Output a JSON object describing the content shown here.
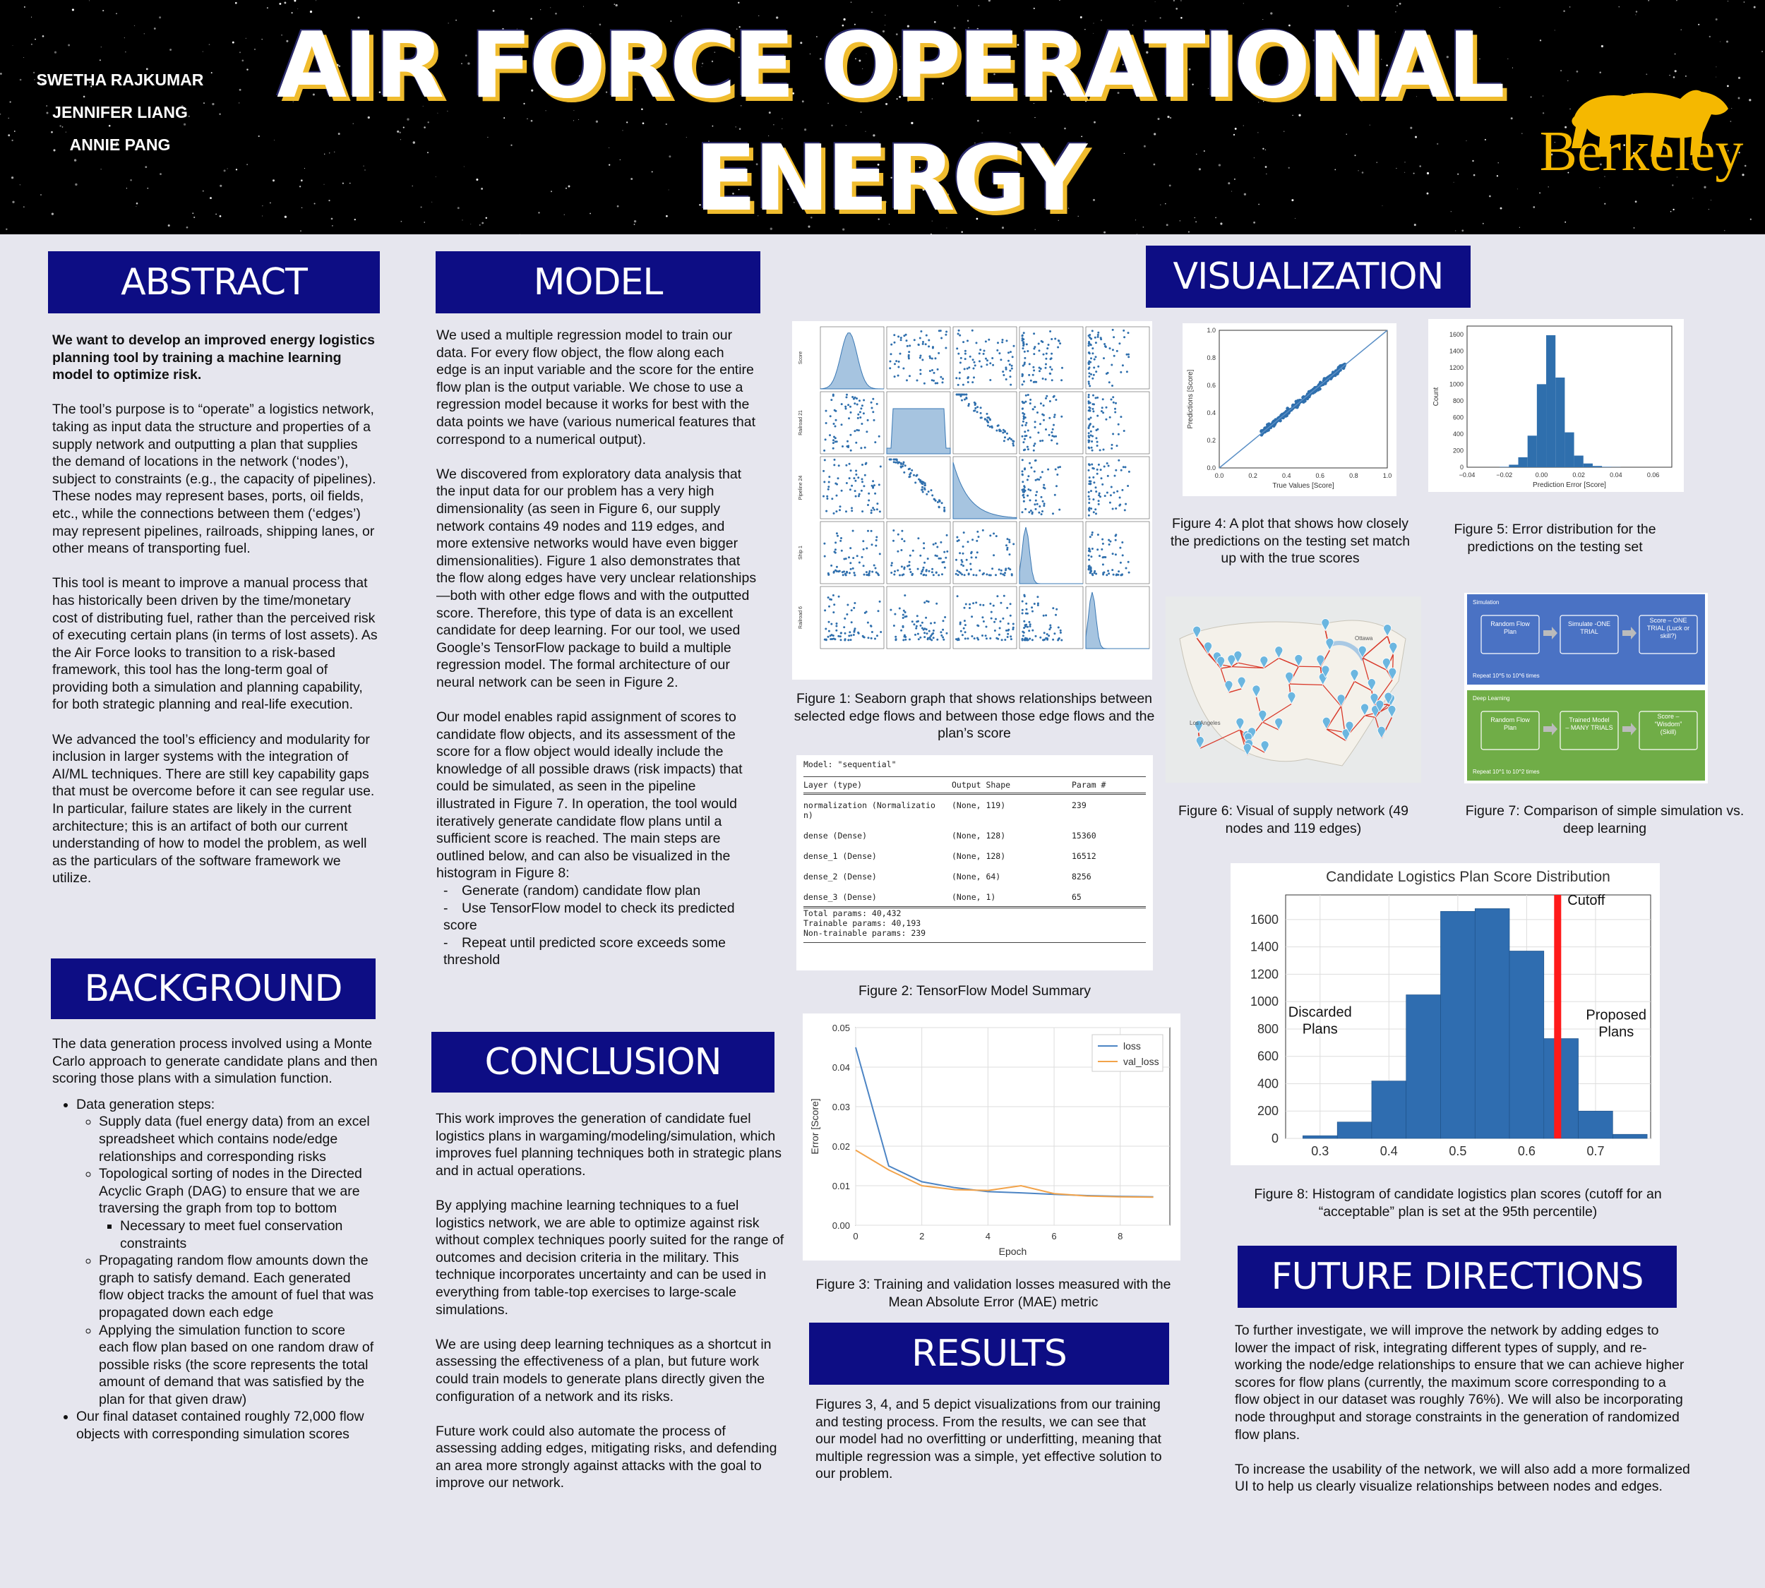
{
  "header": {
    "title": "AIR FORCE OPERATIONAL ENERGY",
    "authors": [
      "SWETHA RAJKUMAR",
      "JENNIFER LIANG",
      "ANNIE PANG"
    ],
    "logo_text": "Berkeley"
  },
  "sections": {
    "abstract": "ABSTRACT",
    "background": "BACKGROUND",
    "model": "MODEL",
    "conclusion": "CONCLUSION",
    "visualization": "VISUALIZATION",
    "results": "RESULTS",
    "future": "FUTURE DIRECTIONS"
  },
  "abstract": {
    "lead": "We want to develop an improved energy logistics planning tool by training a machine learning model to optimize risk.",
    "p1": "The tool’s purpose is to “operate” a logistics network, taking as input data the structure and properties of a supply network and outputting a plan that supplies the demand of locations in the network (‘nodes’), subject to constraints (e.g., the capacity of pipelines). These nodes may represent bases, ports, oil fields, etc., while the connections between them (‘edges’) may represent pipelines, railroads, shipping lanes, or other means of transporting fuel.",
    "p2": "This tool is meant to improve a manual process that has historically been driven by the time/monetary cost of distributing fuel, rather than the perceived risk of executing certain plans (in terms of lost assets). As the Air Force looks to transition to a risk-based framework, this tool has the long-term goal of providing both a simulation and planning capability, for both strategic planning and real-life execution.",
    "p3": "We advanced the tool’s efficiency and modularity for inclusion in larger systems with the integration of AI/ML techniques. There are still key capability gaps that must be overcome before it can see regular use. In particular, failure states are likely in the current architecture; this is an artifact of both our current understanding of how to model the problem, as well as the particulars of the software framework we utilize."
  },
  "background": {
    "intro": "The data generation process involved using a Monte Carlo approach to generate candidate plans and then scoring those plans with a simulation function.",
    "steps_label": "Data generation steps:",
    "s1": "Supply data (fuel energy data) from an excel spreadsheet which contains node/edge relationships and corresponding risks",
    "s2": "Topological sorting of nodes in the Directed Acyclic Graph (DAG) to ensure that we are traversing the graph from top to bottom",
    "s2a": "Necessary to meet fuel conservation constraints",
    "s3": "Propagating random flow amounts down the graph to satisfy demand. Each generated flow object tracks the amount of fuel that was propagated down each edge",
    "s4": "Applying the simulation function to score each flow plan based on one random draw of possible risks (the score represents the total amount of demand that was satisfied by the plan for that given draw)",
    "final": "Our final dataset contained roughly 72,000 flow objects with corresponding simulation scores"
  },
  "model": {
    "p1": "We used a multiple regression model to train our data. For every flow object, the flow along each edge is an input variable and the score for the entire flow plan is the output variable. We chose to use a regression model because it works for best with the data points we have (various numerical features that correspond to a numerical output).",
    "p2": "We discovered from exploratory data analysis that the input data for our problem has a very high dimensionality (as seen in Figure 6, our supply network contains 49 nodes and 119 edges, and more extensive networks would have even bigger dimensionalities). Figure 1 also demonstrates that the flow along edges have very unclear relationships—both with other edge flows and with the outputted score. Therefore, this type of data is an excellent candidate for deep learning. For our tool, we used Google’s TensorFlow package to build a multiple regression model. The formal architecture of our neural network can be seen in Figure 2.",
    "p3": "Our model enables rapid assignment of scores to candidate flow objects, and its assessment of the score for a flow object would ideally include the knowledge of all possible draws (risk impacts) that could be simulated, as seen in the pipeline illustrated in Figure 7. In operation, the tool would iteratively generate candidate flow plans until a sufficient score is reached. The main steps are outlined below, and can also be visualized in the histogram in Figure 8:",
    "d1": "Generate (random) candidate flow plan",
    "d2": "Use TensorFlow model to check its predicted score",
    "d3": "Repeat until predicted score exceeds some threshold"
  },
  "conclusion": {
    "p1": "This work improves the generation of candidate fuel logistics plans in wargaming/modeling/simulation, which improves fuel planning techniques both in strategic plans and in actual operations.",
    "p2": "By applying machine learning techniques to a fuel logistics network, we are able to optimize against risk without complex techniques poorly suited for the range of outcomes and decision criteria in the military. This technique incorporates uncertainty and can be used in everything from table-top exercises to large-scale simulations.",
    "p3": "We are using deep learning techniques as a shortcut in assessing the effectiveness of a plan, but future work could train models to generate plans directly given the configuration of a network and its risks.",
    "p4": "Future work could also automate the process of assessing adding edges, mitigating risks, and defending an area more strongly against attacks with the goal to improve our network."
  },
  "results": {
    "p1": "Figures 3, 4, and 5 depict visualizations from our training and testing process. From the results, we can see that our model had no overfitting or underfitting, meaning that multiple regression was a simple, yet effective solution to our problem."
  },
  "future": {
    "p1": "To further investigate, we will improve the network by adding edges to lower the impact of risk, integrating different types of supply, and re-working the node/edge relationships to ensure that we can achieve higher scores for flow plans (currently, the maximum score corresponding to a flow object in our dataset was roughly 76%). We will also be incorporating node throughput and storage constraints in the generation of randomized flow plans.",
    "p2": "To increase the usability of the network, we will also add a more formalized UI to help us clearly visualize relationships between nodes and edges."
  },
  "captions": {
    "fig1": "Figure 1: Seaborn graph that shows relationships between selected edge flows and between those edge flows and the plan’s score",
    "fig2": "Figure 2: TensorFlow Model Summary",
    "fig3": "Figure 3: Training and validation losses measured with the Mean Absolute Error (MAE) metric",
    "fig4": "Figure 4: A plot that shows how closely the predictions on the testing set match up with the true scores",
    "fig5": "Figure 5: Error distribution for the predictions on the testing set",
    "fig6": "Figure 6: Visual of supply network (49 nodes and 119 edges)",
    "fig7": "Figure 7: Comparison of simple simulation vs. deep learning",
    "fig8": "Figure 8: Histogram of candidate logistics plan scores (cutoff for an “acceptable” plan is set at the 95th percentile)"
  },
  "fig2_summary": {
    "model_line": "Model: \"sequential\"",
    "headers": [
      "Layer (type)",
      "Output Shape",
      "Param #"
    ],
    "rows": [
      [
        "normalization (Normalizatio\nn)",
        "(None, 119)",
        "239"
      ],
      [
        "dense (Dense)",
        "(None, 128)",
        "15360"
      ],
      [
        "dense_1 (Dense)",
        "(None, 128)",
        "16512"
      ],
      [
        "dense_2 (Dense)",
        "(None, 64)",
        "8256"
      ],
      [
        "dense_3 (Dense)",
        "(None, 1)",
        "65"
      ]
    ],
    "total": "Total params: 40,432",
    "trainable": "Trainable params: 40,193",
    "nontrainable": "Non-trainable params: 239"
  },
  "fig7": {
    "sim_label": "Simulation",
    "sim_boxes": [
      "Random Flow Plan",
      "Simulate -ONE TRIAL",
      "Score – ONE TRIAL (Luck or skill?)"
    ],
    "sim_repeat": "Repeat 10^5 to 10^6 times",
    "dl_label": "Deep Learning",
    "dl_boxes": [
      "Random Flow Plan",
      "Trained Model – MANY TRIALS",
      "Score – “Wisdom” (Skill)"
    ],
    "dl_repeat": "Repeat 10^1 to 10^2 times",
    "sim_color": "#4a72c4",
    "dl_color": "#70ad47"
  },
  "fig6": {
    "labels": [
      "Ottawa",
      "Los Angeles"
    ]
  },
  "chart_data": [
    {
      "id": "fig3",
      "type": "line",
      "x": [
        0,
        1,
        2,
        3,
        4,
        5,
        6,
        7,
        8,
        9
      ],
      "series": [
        {
          "name": "loss",
          "values": [
            0.045,
            0.015,
            0.011,
            0.0095,
            0.0085,
            0.0082,
            0.0078,
            0.0075,
            0.0073,
            0.0072
          ],
          "color": "#4c84c4"
        },
        {
          "name": "val_loss",
          "values": [
            0.019,
            0.014,
            0.01,
            0.009,
            0.0088,
            0.01,
            0.008,
            0.0074,
            0.0072,
            0.0071
          ],
          "color": "#f2a34a"
        }
      ],
      "xlabel": "Epoch",
      "ylabel": "Error [Score]",
      "ylim": [
        0,
        0.05
      ],
      "yticks": [
        "0.00",
        "0.01",
        "0.02",
        "0.03",
        "0.04",
        "0.05"
      ],
      "xticks": [
        "0",
        "2",
        "4",
        "6",
        "8"
      ],
      "grid": true,
      "legend": "top-right"
    },
    {
      "id": "fig4",
      "type": "scatter",
      "xlabel": "True Values [Score]",
      "ylabel": "Predictions [Score]",
      "xlim": [
        0,
        1.0
      ],
      "ylim": [
        0,
        1.0
      ],
      "ticks": [
        "0.0",
        "0.2",
        "0.4",
        "0.6",
        "0.8",
        "1.0"
      ],
      "x": [
        0.28,
        0.32,
        0.36,
        0.4,
        0.44,
        0.48,
        0.52,
        0.56,
        0.6,
        0.64,
        0.68,
        0.72
      ],
      "y": [
        0.28,
        0.33,
        0.36,
        0.41,
        0.44,
        0.49,
        0.52,
        0.57,
        0.6,
        0.65,
        0.68,
        0.73
      ]
    },
    {
      "id": "fig5",
      "type": "bar",
      "xlabel": "Prediction Error [Score]",
      "ylabel": "Count",
      "xticks": [
        "−0.04",
        "−0.02",
        "0.00",
        "0.02",
        "0.04",
        "0.06"
      ],
      "yticks": [
        "0",
        "200",
        "400",
        "600",
        "800",
        "1000",
        "1200",
        "1400",
        "1600"
      ],
      "xlim": [
        -0.04,
        0.07
      ],
      "ylim": [
        0,
        1700
      ],
      "bin_start": -0.0225,
      "bin_width": 0.005,
      "values": [
        5,
        30,
        120,
        380,
        1000,
        1590,
        1080,
        420,
        140,
        45,
        15,
        5,
        2
      ]
    },
    {
      "id": "fig8",
      "type": "bar",
      "title": "Candidate Logistics Plan Score Distribution",
      "xticks": [
        "0.3",
        "0.4",
        "0.5",
        "0.6",
        "0.7"
      ],
      "yticks": [
        "0",
        "200",
        "400",
        "600",
        "800",
        "1000",
        "1200",
        "1400",
        "1600"
      ],
      "xlim": [
        0.25,
        0.78
      ],
      "ylim": [
        0,
        1780
      ],
      "bin_start": 0.275,
      "bin_width": 0.05,
      "values": [
        20,
        120,
        420,
        1050,
        1660,
        1680,
        1370,
        730,
        200,
        30
      ],
      "cutoff": 0.645,
      "cutoff_label": "Cutoff",
      "left_label": "Discarded Plans",
      "right_label": "Proposed Plans"
    }
  ]
}
